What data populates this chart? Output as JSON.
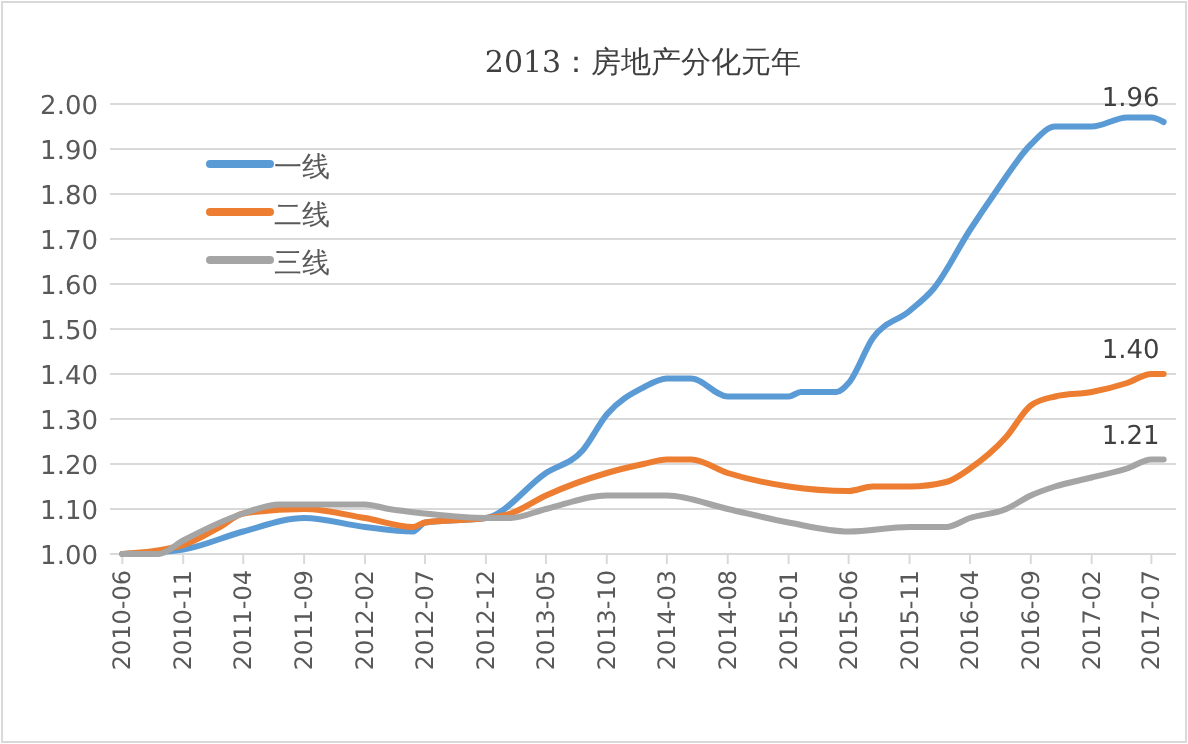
{
  "chart_data": {
    "type": "line",
    "title": "2013：房地产分化元年",
    "xlim": [
      "2010-05",
      "2017-09"
    ],
    "xticks": [
      "2010-06",
      "2010-11",
      "2011-04",
      "2011-09",
      "2012-02",
      "2012-07",
      "2012-12",
      "2013-05",
      "2013-10",
      "2014-03",
      "2014-08",
      "2015-01",
      "2015-06",
      "2015-11",
      "2016-04",
      "2016-09",
      "2017-02",
      "2017-07"
    ],
    "ylim": [
      1.0,
      2.0
    ],
    "yticks": [
      {
        "value": 1.0,
        "label": "1.00"
      },
      {
        "value": 1.1,
        "label": "1.10"
      },
      {
        "value": 1.2,
        "label": "1.20"
      },
      {
        "value": 1.3,
        "label": "1.30"
      },
      {
        "value": 1.4,
        "label": "1.40"
      },
      {
        "value": 1.5,
        "label": "1.50"
      },
      {
        "value": 1.6,
        "label": "1.60"
      },
      {
        "value": 1.7,
        "label": "1.70"
      },
      {
        "value": 1.8,
        "label": "1.80"
      },
      {
        "value": 1.9,
        "label": "1.90"
      },
      {
        "value": 2.0,
        "label": "2.00"
      }
    ],
    "grid": "y",
    "legend": "top left",
    "marker": "none",
    "line_style": "solid",
    "series": [
      {
        "name": "一线",
        "color": "#5b9bd5",
        "x": [
          "2010-06",
          "2010-11",
          "2011-04",
          "2011-09",
          "2012-02",
          "2012-06",
          "2012-07",
          "2012-12",
          "2013-05",
          "2013-08",
          "2013-10",
          "2014-01",
          "2014-03",
          "2014-05",
          "2014-08",
          "2014-10",
          "2015-01",
          "2015-02",
          "2015-05",
          "2015-06",
          "2015-08",
          "2015-11",
          "2016-01",
          "2016-04",
          "2016-06",
          "2016-09",
          "2016-11",
          "2017-02",
          "2017-05",
          "2017-07",
          "2017-08"
        ],
        "values": [
          1.0,
          1.01,
          1.05,
          1.08,
          1.06,
          1.05,
          1.07,
          1.08,
          1.18,
          1.23,
          1.31,
          1.37,
          1.39,
          1.39,
          1.35,
          1.35,
          1.35,
          1.36,
          1.36,
          1.38,
          1.48,
          1.54,
          1.59,
          1.72,
          1.8,
          1.91,
          1.95,
          1.95,
          1.97,
          1.97,
          1.96
        ]
      },
      {
        "name": "二线",
        "color": "#ed7d31",
        "x": [
          "2010-06",
          "2010-11",
          "2011-02",
          "2011-04",
          "2011-09",
          "2012-02",
          "2012-06",
          "2012-07",
          "2012-12",
          "2013-02",
          "2013-05",
          "2013-10",
          "2014-01",
          "2014-03",
          "2014-05",
          "2014-08",
          "2015-01",
          "2015-06",
          "2015-08",
          "2015-11",
          "2016-02",
          "2016-04",
          "2016-07",
          "2016-09",
          "2016-11",
          "2017-02",
          "2017-05",
          "2017-07",
          "2017-08"
        ],
        "values": [
          1.0,
          1.02,
          1.06,
          1.09,
          1.1,
          1.08,
          1.06,
          1.07,
          1.08,
          1.09,
          1.13,
          1.18,
          1.2,
          1.21,
          1.21,
          1.18,
          1.15,
          1.14,
          1.15,
          1.15,
          1.16,
          1.19,
          1.26,
          1.33,
          1.35,
          1.36,
          1.38,
          1.4,
          1.4
        ]
      },
      {
        "name": "三线",
        "color": "#a5a5a5",
        "x": [
          "2010-06",
          "2010-09",
          "2010-11",
          "2011-04",
          "2011-07",
          "2011-09",
          "2012-02",
          "2012-04",
          "2012-07",
          "2012-12",
          "2013-02",
          "2013-05",
          "2013-10",
          "2014-03",
          "2014-08",
          "2015-01",
          "2015-06",
          "2015-11",
          "2016-02",
          "2016-04",
          "2016-07",
          "2016-09",
          "2016-11",
          "2017-02",
          "2017-05",
          "2017-07",
          "2017-08"
        ],
        "values": [
          1.0,
          1.0,
          1.03,
          1.09,
          1.11,
          1.11,
          1.11,
          1.1,
          1.09,
          1.08,
          1.08,
          1.1,
          1.13,
          1.13,
          1.1,
          1.07,
          1.05,
          1.06,
          1.06,
          1.08,
          1.1,
          1.13,
          1.15,
          1.17,
          1.19,
          1.21,
          1.21
        ]
      }
    ],
    "annotations": [
      {
        "text": "1.96",
        "x": "2017-08",
        "y": 1.96
      },
      {
        "text": "1.40",
        "x": "2017-08",
        "y": 1.4
      },
      {
        "text": "1.21",
        "x": "2017-08",
        "y": 1.21
      }
    ]
  }
}
